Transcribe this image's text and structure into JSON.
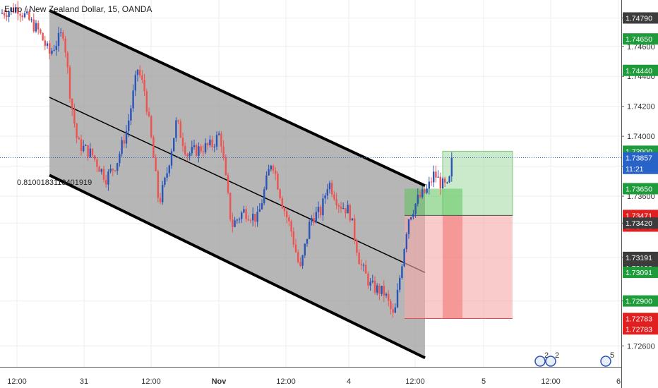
{
  "chart_data": {
    "type": "candlestick",
    "title": "Euro / New Zealand Dollar, 15, OANDA",
    "x_ticks": [
      "12:00",
      "31",
      "12:00",
      "Nov",
      "12:00",
      "4",
      "12:00",
      "5",
      "12:00",
      "6"
    ],
    "y_range": [
      1.7246,
      1.7491
    ],
    "y_ticks": [
      "1.72600",
      "1.72900",
      "1.73190",
      "1.73420",
      "1.73600",
      "1.73800",
      "1.74000",
      "1.74200",
      "1.74400",
      "1.74600",
      "1.74790"
    ],
    "price_badges": [
      {
        "label": "1.74790",
        "value": 1.7479,
        "color": "#3c3c3c"
      },
      {
        "label": "1.74650",
        "value": 1.7465,
        "color": "#1e9b3a"
      },
      {
        "label": "1.74440",
        "value": 1.7444,
        "color": "#1e9b3a"
      },
      {
        "label": "1.73900",
        "value": 1.739,
        "color": "#1e9b3a"
      },
      {
        "label": "1.73857",
        "value": 1.73857,
        "color": "#2a63c8"
      },
      {
        "label": "11:21",
        "value": 1.73785,
        "color": "#2a63c8"
      },
      {
        "label": "1.73650",
        "value": 1.7365,
        "color": "#1e9b3a"
      },
      {
        "label": "1.73471",
        "value": 1.73471,
        "color": "#e02020"
      },
      {
        "label": "1.73470",
        "value": 1.734,
        "color": "#e02020"
      },
      {
        "label": "1.73420",
        "value": 1.7342,
        "color": "#3c3c3c"
      },
      {
        "label": "1.73191",
        "value": 1.73191,
        "color": "#3c3c3c"
      },
      {
        "label": "1.73190",
        "value": 1.7312,
        "color": "#3c3c3c"
      },
      {
        "label": "1.73091",
        "value": 1.73091,
        "color": "#1e9b3a"
      },
      {
        "label": "1.72900",
        "value": 1.729,
        "color": "#1e9b3a"
      },
      {
        "label": "1.72783",
        "value": 1.72783,
        "color": "#e02020"
      },
      {
        "label": "1.72783",
        "value": 1.72713,
        "color": "#e02020"
      }
    ],
    "channel_label": "0.8100183113401919",
    "current_price": 1.73857,
    "colors": {
      "up": "#2a54b8",
      "down": "#ef5350",
      "channel": "#9e9e9e",
      "profit": "#a8dca8",
      "loss": "#f5a8a8"
    },
    "event_markers": [
      "2",
      "2",
      "5"
    ]
  }
}
